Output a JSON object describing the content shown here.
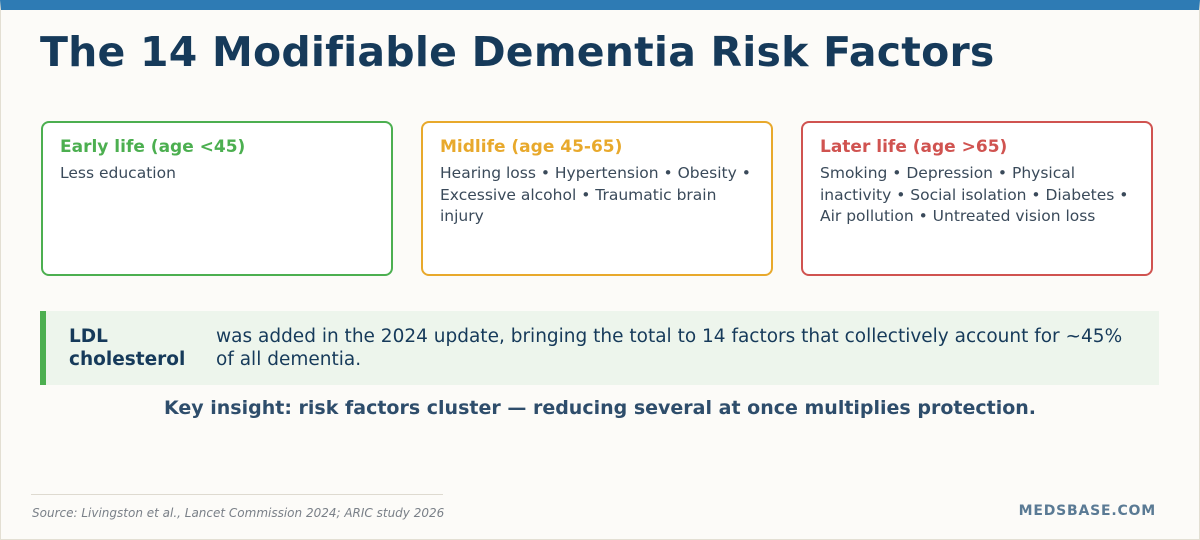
{
  "title": "The 14 Modifiable Dementia Risk Factors",
  "colors": {
    "top_bar": "#2e7bb4",
    "title": "#163a5a",
    "early": "#4caf50",
    "mid": "#e8a92c",
    "late": "#d05350",
    "callout_bg": "#edf5ec"
  },
  "cards": [
    {
      "heading": "Early life (age <45)",
      "text": "Less education"
    },
    {
      "heading": "Midlife (age 45-65)",
      "text": "Hearing loss • Hypertension • Obesity • Excessive alcohol • Traumatic brain injury"
    },
    {
      "heading": "Later life (age >65)",
      "text": "Smoking • Depression • Physical inactivity • Social isolation • Diabetes • Air pollution • Untreated vision loss"
    }
  ],
  "callout": {
    "term": "LDL cholesterol",
    "text": "was added in the 2024 update, bringing the total to 14 factors that collectively account for ~45% of all dementia."
  },
  "insight": "Key insight: risk factors cluster — reducing several at once multiplies protection.",
  "source": "Source: Livingston et al., Lancet Commission 2024; ARIC study 2026",
  "brand": "MEDSBASE.COM"
}
